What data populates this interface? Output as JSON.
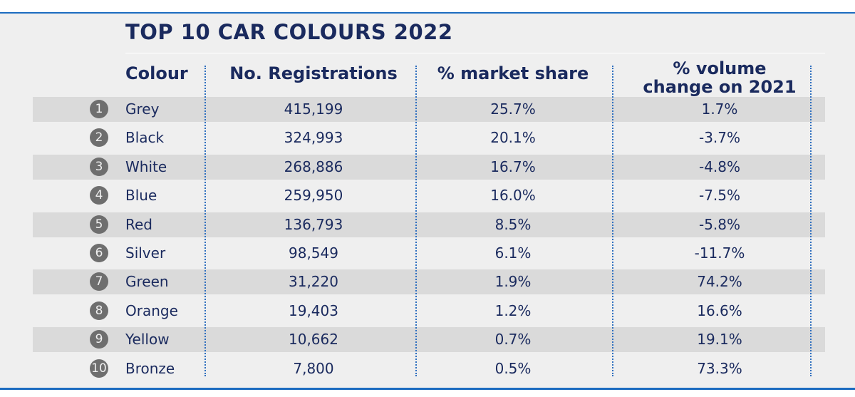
{
  "chart_data": {
    "type": "table",
    "title": "TOP 10 CAR COLOURS 2022",
    "columns": [
      "Colour",
      "No. Registrations",
      "% market share",
      "% volume change on 2021"
    ],
    "rows": [
      {
        "rank": "1",
        "colour": "Grey",
        "registrations": "415,199",
        "share": "25.7%",
        "change": "1.7%"
      },
      {
        "rank": "2",
        "colour": "Black",
        "registrations": "324,993",
        "share": "20.1%",
        "change": "-3.7%"
      },
      {
        "rank": "3",
        "colour": "White",
        "registrations": "268,886",
        "share": "16.7%",
        "change": "-4.8%"
      },
      {
        "rank": "4",
        "colour": "Blue",
        "registrations": "259,950",
        "share": "16.0%",
        "change": "-7.5%"
      },
      {
        "rank": "5",
        "colour": "Red",
        "registrations": "136,793",
        "share": "8.5%",
        "change": "-5.8%"
      },
      {
        "rank": "6",
        "colour": "Silver",
        "registrations": "98,549",
        "share": "6.1%",
        "change": "-11.7%"
      },
      {
        "rank": "7",
        "colour": "Green",
        "registrations": "31,220",
        "share": "1.9%",
        "change": "74.2%"
      },
      {
        "rank": "8",
        "colour": "Orange",
        "registrations": "19,403",
        "share": "1.2%",
        "change": "16.6%"
      },
      {
        "rank": "9",
        "colour": "Yellow",
        "registrations": "10,662",
        "share": "0.7%",
        "change": "19.1%"
      },
      {
        "rank": "10",
        "colour": "Bronze",
        "registrations": "7,800",
        "share": "0.5%",
        "change": "73.3%"
      }
    ]
  },
  "header": {
    "colour": "Colour",
    "registrations": "No. Registrations",
    "share": "% market share",
    "change_line1": "% volume",
    "change_line2": "change on 2021"
  },
  "colors": {
    "accent": "#1c6cc0",
    "text": "#1a2a5e",
    "row_shade": "#dadada",
    "background": "#efefef",
    "badge": "#6e6e6e"
  }
}
